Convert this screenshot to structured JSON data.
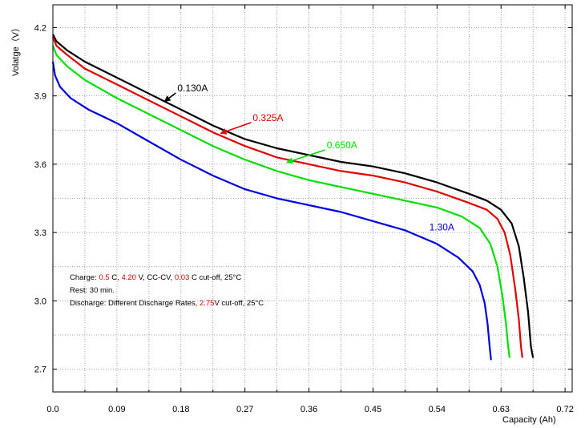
{
  "chart_data": {
    "type": "line",
    "title": "",
    "xlabel": "Capacity (Ah)",
    "ylabel": "Volatge（V）",
    "xlim": [
      0.0,
      0.73
    ],
    "ylim": [
      2.6,
      4.3
    ],
    "x_ticks": [
      0.0,
      0.09,
      0.18,
      0.27,
      0.36,
      0.45,
      0.54,
      0.63,
      0.72
    ],
    "x_tick_labels": [
      "0.0",
      "0.09",
      "0.18",
      "0.27",
      "0.36",
      "0.45",
      "0.54",
      "0.63",
      "0.72"
    ],
    "y_ticks": [
      2.7,
      3.0,
      3.3,
      3.6,
      3.9,
      4.2
    ],
    "y_tick_labels": [
      "2.7",
      "3.0",
      "3.3",
      "3.6",
      "3.9",
      "4.2"
    ],
    "grid": true,
    "series": [
      {
        "name": "0.130A",
        "color": "#000000",
        "points": [
          [
            0.0,
            4.17
          ],
          [
            0.005,
            4.14
          ],
          [
            0.02,
            4.1
          ],
          [
            0.045,
            4.05
          ],
          [
            0.09,
            3.98
          ],
          [
            0.135,
            3.91
          ],
          [
            0.18,
            3.84
          ],
          [
            0.225,
            3.77
          ],
          [
            0.27,
            3.71
          ],
          [
            0.315,
            3.67
          ],
          [
            0.36,
            3.64
          ],
          [
            0.405,
            3.61
          ],
          [
            0.45,
            3.59
          ],
          [
            0.495,
            3.56
          ],
          [
            0.54,
            3.52
          ],
          [
            0.585,
            3.47
          ],
          [
            0.61,
            3.44
          ],
          [
            0.63,
            3.4
          ],
          [
            0.645,
            3.34
          ],
          [
            0.655,
            3.24
          ],
          [
            0.662,
            3.1
          ],
          [
            0.668,
            2.95
          ],
          [
            0.672,
            2.8
          ],
          [
            0.675,
            2.75
          ]
        ]
      },
      {
        "name": "0.325A",
        "color": "#e00000",
        "points": [
          [
            0.0,
            4.16
          ],
          [
            0.005,
            4.12
          ],
          [
            0.02,
            4.08
          ],
          [
            0.045,
            4.02
          ],
          [
            0.09,
            3.95
          ],
          [
            0.135,
            3.88
          ],
          [
            0.18,
            3.81
          ],
          [
            0.225,
            3.74
          ],
          [
            0.27,
            3.68
          ],
          [
            0.315,
            3.63
          ],
          [
            0.36,
            3.6
          ],
          [
            0.405,
            3.57
          ],
          [
            0.45,
            3.55
          ],
          [
            0.495,
            3.52
          ],
          [
            0.54,
            3.48
          ],
          [
            0.585,
            3.43
          ],
          [
            0.61,
            3.4
          ],
          [
            0.625,
            3.36
          ],
          [
            0.635,
            3.3
          ],
          [
            0.643,
            3.2
          ],
          [
            0.65,
            3.05
          ],
          [
            0.655,
            2.92
          ],
          [
            0.658,
            2.8
          ],
          [
            0.66,
            2.75
          ]
        ]
      },
      {
        "name": "0.650A",
        "color": "#00e000",
        "points": [
          [
            0.0,
            4.12
          ],
          [
            0.005,
            4.08
          ],
          [
            0.02,
            4.03
          ],
          [
            0.045,
            3.97
          ],
          [
            0.09,
            3.89
          ],
          [
            0.135,
            3.82
          ],
          [
            0.18,
            3.75
          ],
          [
            0.225,
            3.68
          ],
          [
            0.27,
            3.62
          ],
          [
            0.315,
            3.57
          ],
          [
            0.36,
            3.53
          ],
          [
            0.405,
            3.5
          ],
          [
            0.45,
            3.47
          ],
          [
            0.495,
            3.44
          ],
          [
            0.54,
            3.41
          ],
          [
            0.575,
            3.37
          ],
          [
            0.6,
            3.32
          ],
          [
            0.615,
            3.25
          ],
          [
            0.625,
            3.15
          ],
          [
            0.632,
            3.02
          ],
          [
            0.637,
            2.9
          ],
          [
            0.64,
            2.8
          ],
          [
            0.642,
            2.75
          ]
        ]
      },
      {
        "name": "1.30A",
        "color": "#0000e0",
        "points": [
          [
            0.0,
            4.05
          ],
          [
            0.003,
            3.99
          ],
          [
            0.01,
            3.94
          ],
          [
            0.025,
            3.89
          ],
          [
            0.05,
            3.84
          ],
          [
            0.09,
            3.78
          ],
          [
            0.135,
            3.7
          ],
          [
            0.18,
            3.62
          ],
          [
            0.225,
            3.55
          ],
          [
            0.27,
            3.49
          ],
          [
            0.315,
            3.45
          ],
          [
            0.36,
            3.42
          ],
          [
            0.405,
            3.39
          ],
          [
            0.45,
            3.35
          ],
          [
            0.495,
            3.31
          ],
          [
            0.54,
            3.25
          ],
          [
            0.57,
            3.19
          ],
          [
            0.59,
            3.13
          ],
          [
            0.6,
            3.07
          ],
          [
            0.607,
            2.99
          ],
          [
            0.611,
            2.9
          ],
          [
            0.614,
            2.8
          ],
          [
            0.616,
            2.74
          ]
        ]
      }
    ],
    "series_labels": [
      {
        "text": "0.130A",
        "color": "#000000",
        "x": 0.175,
        "y": 3.92,
        "arrow_to": [
          0.157,
          3.876
        ]
      },
      {
        "text": "0.325A",
        "color": "#e00000",
        "x": 0.281,
        "y": 3.79,
        "arrow_to": [
          0.236,
          3.736
        ]
      },
      {
        "text": "0.650A",
        "color": "#00e000",
        "x": 0.385,
        "y": 3.67,
        "arrow_to": [
          0.329,
          3.608
        ]
      },
      {
        "text": "1.30A",
        "color": "#0000e0",
        "x": 0.529,
        "y": 3.31,
        "arrow_to": null
      }
    ],
    "annotations": [
      {
        "segments": [
          {
            "text": "Charge: ",
            "color": "#000000"
          },
          {
            "text": "0.5",
            "color": "#e00000"
          },
          {
            "text": " C, ",
            "color": "#000000"
          },
          {
            "text": "4.20",
            "color": "#e00000"
          },
          {
            "text": " V, CC-CV, ",
            "color": "#000000"
          },
          {
            "text": "0.03",
            "color": "#e00000"
          },
          {
            "text": " C cut-off, 25°C",
            "color": "#000000"
          }
        ]
      },
      {
        "segments": [
          {
            "text": "Rest: 30 min.",
            "color": "#000000"
          }
        ]
      },
      {
        "segments": [
          {
            "text": "Discharge: Different Discharge Rates, ",
            "color": "#000000"
          },
          {
            "text": "2.75",
            "color": "#e00000"
          },
          {
            "text": "V cut-off, 25°C",
            "color": "#000000"
          }
        ]
      }
    ]
  }
}
